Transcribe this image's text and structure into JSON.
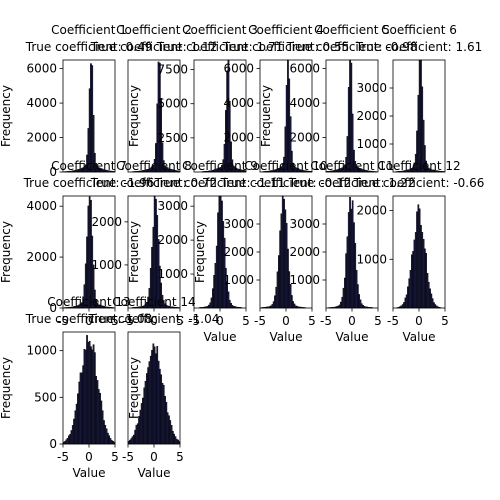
{
  "chart_data": {
    "type": "histogram-grid",
    "panels": [
      {
        "title": "Coefficient 1",
        "subtitle": "True coefficient: 0.49",
        "xlim": [
          -5,
          5
        ],
        "ylim": [
          0,
          6500
        ],
        "yticks": [
          0,
          2000,
          4000,
          6000
        ],
        "xticks": [],
        "xlabel": "",
        "ylabel": "Frequency",
        "peak": 6200,
        "center": 0.4,
        "spread": 0.35,
        "tail": 0.12
      },
      {
        "title": "Coefficient 2",
        "subtitle": "True coefficient: 1.12",
        "xlim": [
          -5,
          5
        ],
        "ylim": [
          0,
          6500
        ],
        "yticks": [],
        "xticks": [],
        "xlabel": "",
        "ylabel": "Frequency",
        "peak": 6100,
        "center": 1.0,
        "spread": 0.35,
        "tail": 0.12
      },
      {
        "title": "Coefficient 3",
        "subtitle": "True coefficient: 1.71",
        "xlim": [
          -5,
          5
        ],
        "ylim": [
          0,
          8200
        ],
        "yticks": [
          2500,
          5000,
          7500
        ],
        "xticks": [],
        "xlabel": "",
        "ylabel": "",
        "peak": 7600,
        "center": 1.5,
        "spread": 0.35,
        "tail": 0.12
      },
      {
        "title": "Coefficient 4",
        "subtitle": "True coefficient: 0.55",
        "xlim": [
          -5,
          5
        ],
        "ylim": [
          0,
          6500
        ],
        "yticks": [
          2000,
          4000,
          6000
        ],
        "xticks": [],
        "xlabel": "",
        "ylabel": "Frequency",
        "peak": 6100,
        "center": 0.4,
        "spread": 0.35,
        "tail": 0.12
      },
      {
        "title": "Coefficient 5",
        "subtitle": "True coefficient: -0.98",
        "xlim": [
          -5,
          5
        ],
        "ylim": [
          0,
          6500
        ],
        "yticks": [
          2000,
          4000,
          6000
        ],
        "xticks": [],
        "xlabel": "",
        "ylabel": "",
        "peak": 6000,
        "center": -0.3,
        "spread": 0.35,
        "tail": 0.12
      },
      {
        "title": "Coefficient 6",
        "subtitle": "True coefficient: 1.61",
        "xlim": [
          -5,
          5
        ],
        "ylim": [
          0,
          4000
        ],
        "yticks": [
          1000,
          2000,
          3000
        ],
        "xticks": [],
        "xlabel": "",
        "ylabel": "",
        "peak": 3900,
        "center": 0.3,
        "spread": 0.45,
        "tail": 0.1
      },
      {
        "title": "Coefficient 7",
        "subtitle": "True coefficient: -1.96",
        "xlim": [
          -5,
          5
        ],
        "ylim": [
          0,
          4400
        ],
        "yticks": [
          0,
          2000,
          4000
        ],
        "xticks": [
          "-5",
          "0",
          "5"
        ],
        "xlabel": "",
        "ylabel": "Frequency",
        "peak": 4300,
        "center": 0.1,
        "spread": 0.5,
        "tail": 0.1
      },
      {
        "title": "Coefficient 8",
        "subtitle": "True coefficient: 0.72",
        "xlim": [
          -5,
          5
        ],
        "ylim": [
          0,
          2600
        ],
        "yticks": [
          1000,
          2000
        ],
        "xticks": [
          "-5",
          "0",
          "5"
        ],
        "xlabel": "",
        "ylabel": "Frequency",
        "peak": 2400,
        "center": 0.3,
        "spread": 0.6,
        "tail": 0.1
      },
      {
        "title": "Coefficient 9",
        "subtitle": "True coefficient: -1.11",
        "xlim": [
          -5,
          5
        ],
        "ylim": [
          0,
          3300
        ],
        "yticks": [
          1000,
          2000,
          3000
        ],
        "xticks": [
          "-5",
          "0",
          "5"
        ],
        "xlabel": "Value",
        "ylabel": "Frequency",
        "peak": 3000,
        "center": 0.1,
        "spread": 0.75,
        "tail": 0.08
      },
      {
        "title": "Coefficient 10",
        "subtitle": "True coefficient: -0.12",
        "xlim": [
          -5,
          5
        ],
        "ylim": [
          0,
          4000
        ],
        "yticks": [
          1000,
          2000,
          3000
        ],
        "xticks": [
          "-5",
          "0",
          "5"
        ],
        "xlabel": "Value",
        "ylabel": "",
        "peak": 3700,
        "center": -0.5,
        "spread": 0.75,
        "tail": 0.08
      },
      {
        "title": "Coefficient 11",
        "subtitle": "True coefficient: 1.22",
        "xlim": [
          -5,
          5
        ],
        "ylim": [
          0,
          4000
        ],
        "yticks": [
          1000,
          2000,
          3000
        ],
        "xticks": [
          "-5",
          "0",
          "5"
        ],
        "xlabel": "Value",
        "ylabel": "",
        "peak": 3600,
        "center": -0.2,
        "spread": 0.75,
        "tail": 0.08
      },
      {
        "title": "Coefficient 12",
        "subtitle": "True coefficient: -0.66",
        "xlim": [
          -5,
          5
        ],
        "ylim": [
          0,
          2300
        ],
        "yticks": [
          1000,
          2000
        ],
        "xticks": [
          "-5",
          "0",
          "5"
        ],
        "xlabel": "Value",
        "ylabel": "",
        "peak": 1900,
        "center": 0.0,
        "spread": 1.2,
        "tail": 0.05
      },
      {
        "title": "Coefficient 13",
        "subtitle": "True coefficient: 1.08",
        "xlim": [
          -5,
          5
        ],
        "ylim": [
          0,
          1200
        ],
        "yticks": [
          0,
          500,
          1000
        ],
        "xticks": [
          "-5",
          "0",
          "5"
        ],
        "xlabel": "Value",
        "ylabel": "Frequency",
        "peak": 1100,
        "center": 0.0,
        "spread": 1.7,
        "tail": 0.03
      },
      {
        "title": "Coefficient 14",
        "subtitle": "True coefficient: -1.04",
        "xlim": [
          -5,
          5
        ],
        "ylim": [
          0,
          1200
        ],
        "yticks": [],
        "xticks": [
          "-5",
          "0",
          "5"
        ],
        "xlabel": "Value",
        "ylabel": "Frequency",
        "peak": 1050,
        "center": 0.0,
        "spread": 1.8,
        "tail": 0.03
      }
    ],
    "bar_color": "#1a1a40",
    "edge_color": "#000000",
    "grid": false
  }
}
